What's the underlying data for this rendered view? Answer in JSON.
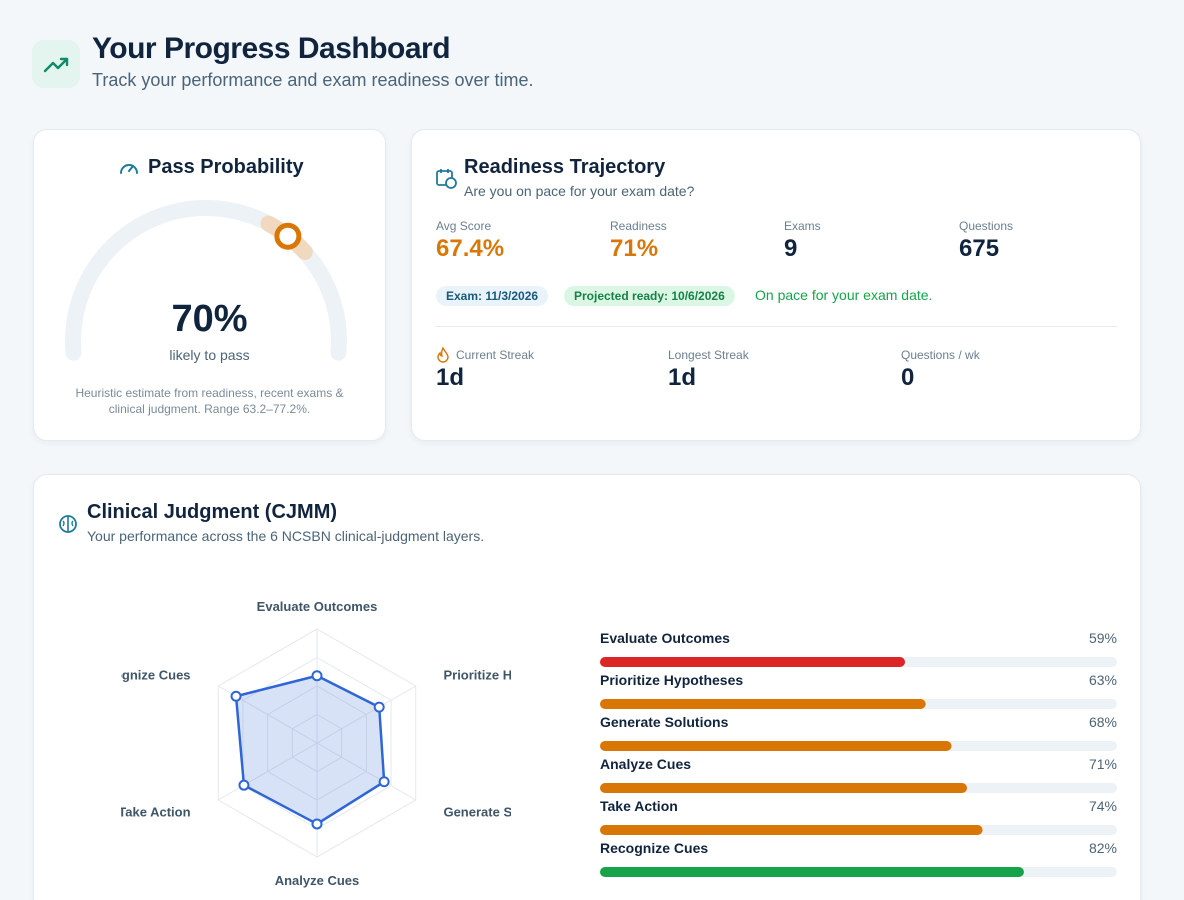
{
  "header": {
    "title": "Your Progress Dashboard",
    "subtitle": "Track your performance and exam readiness over time."
  },
  "pass_probability": {
    "title": "Pass Probability",
    "value": 70,
    "value_label": "70%",
    "caption": "likely to pass",
    "note": "Heuristic estimate from readiness, recent exams & clinical judgment. Range 63.2–77.2%."
  },
  "readiness": {
    "title": "Readiness Trajectory",
    "subtitle": "Are you on pace for your exam date?",
    "stats": [
      {
        "label": "Avg Score",
        "value": "67.4%"
      },
      {
        "label": "Readiness",
        "value": "71%"
      },
      {
        "label": "Exams",
        "value": "9"
      },
      {
        "label": "Questions",
        "value": "675"
      }
    ],
    "exam_badge": "Exam: 11/3/2026",
    "projected_badge": "Projected ready: 10/6/2026",
    "status": "On pace for your exam date.",
    "streaks": [
      {
        "label": "Current Streak",
        "value": "1d"
      },
      {
        "label": "Longest Streak",
        "value": "1d"
      },
      {
        "label": "Questions / wk",
        "value": "0"
      }
    ]
  },
  "cjmm": {
    "title": "Clinical Judgment (CJMM)",
    "subtitle": "Your performance across the 6 NCSBN clinical-judgment layers.",
    "categories": [
      "Evaluate Outcomes",
      "Prioritize Hypotheses",
      "Generate Solutions",
      "Analyze Cues",
      "Take Action",
      "Recognize Cues"
    ],
    "values": [
      59,
      63,
      68,
      71,
      74,
      82
    ],
    "value_labels": [
      "59%",
      "63%",
      "68%",
      "71%",
      "74%",
      "82%"
    ],
    "colors": [
      "#dc2626",
      "#d97706",
      "#d97706",
      "#d97706",
      "#d97706",
      "#16a34a"
    ],
    "radar_color": "#2f66d6"
  }
}
